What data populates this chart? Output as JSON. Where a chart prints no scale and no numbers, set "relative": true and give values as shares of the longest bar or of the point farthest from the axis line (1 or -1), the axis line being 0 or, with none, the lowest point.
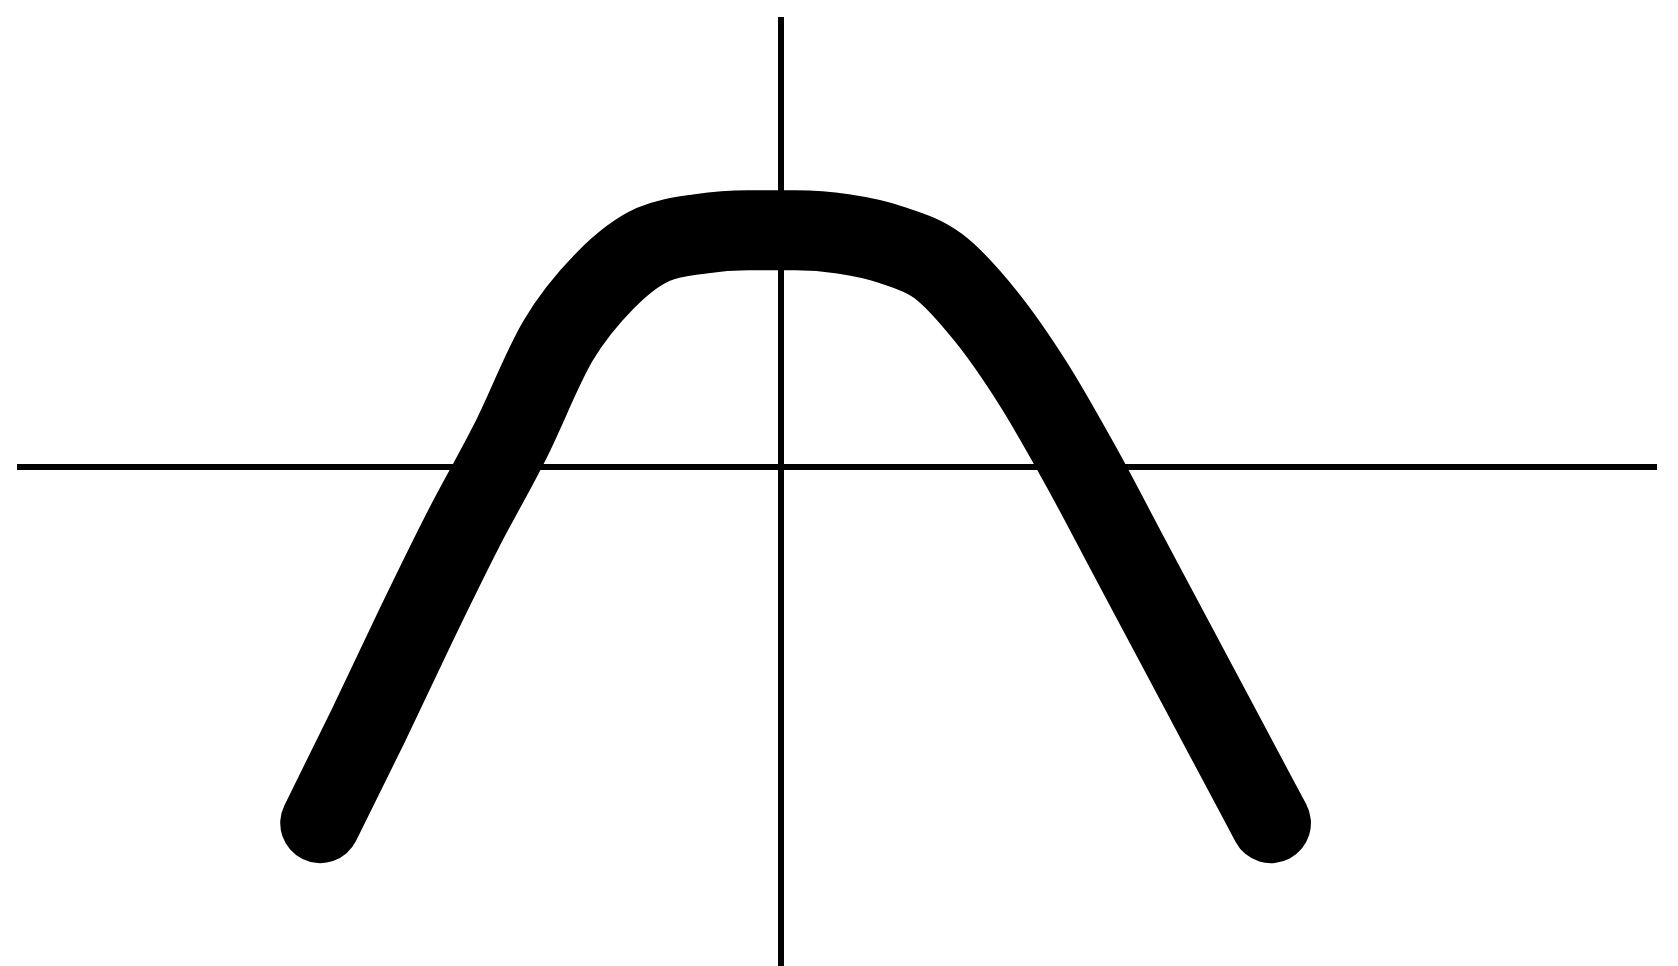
{
  "chart_data": {
    "type": "line",
    "relative": true,
    "categories": [
      null,
      null,
      null,
      null,
      null,
      null,
      null,
      null,
      null,
      null,
      null,
      null,
      null,
      null,
      null,
      null,
      null,
      null,
      null,
      null,
      null
    ],
    "values": [
      -1,
      -0.73,
      -0.45,
      -0.18,
      0.07,
      0.35,
      0.52,
      0.62,
      0.65,
      0.66,
      0.66,
      0.65,
      0.62,
      0.56,
      0.42,
      0.23,
      0,
      -0.25,
      -0.5,
      -0.75,
      -1
    ],
    "color": "#000000"
  }
}
